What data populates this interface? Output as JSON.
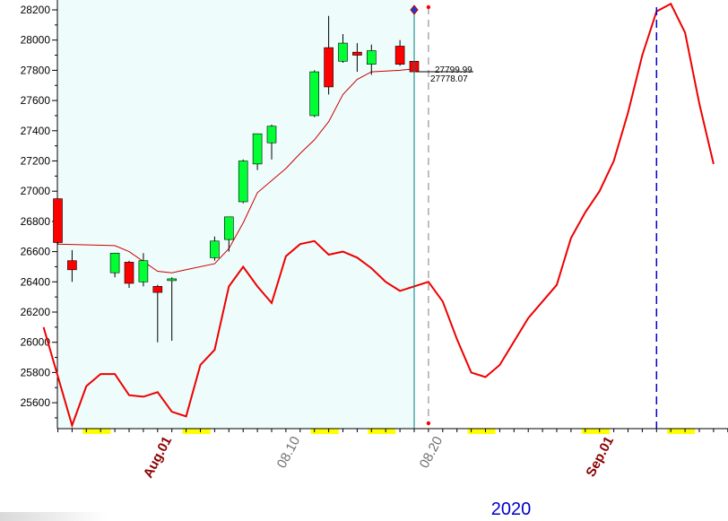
{
  "colors": {
    "history_bg": "#eefcfc",
    "bull": "#00ff33",
    "bear": "#ff0000",
    "avg_line": "#cc0000",
    "forecast_line": "#ee0000",
    "highlight": "#ffff00",
    "current_line": "#007b7b",
    "forecast_marker": "#ff0000",
    "target_line": "#0000cc",
    "month_label": "#8b0000",
    "day_label": "#707070",
    "year_label": "#0000cc"
  },
  "chart_data": {
    "type": "candlestick",
    "ylim": [
      25450,
      28250
    ],
    "y_ticks": [
      "28200",
      "28000",
      "27800",
      "27600",
      "27400",
      "27200",
      "27000",
      "26800",
      "26600",
      "26400",
      "26200",
      "26000",
      "25800",
      "25600"
    ],
    "x_labels": [
      {
        "text": "Aug.01",
        "day": 8,
        "kind": "month"
      },
      {
        "text": "08.10",
        "day": 17,
        "kind": "day"
      },
      {
        "text": "08.20",
        "day": 27,
        "kind": "day"
      },
      {
        "text": "Sep.01",
        "day": 39,
        "kind": "month"
      }
    ],
    "year": "2020",
    "current_day": 25,
    "forecast_day": 26,
    "target_day": 42,
    "highlight_days": [
      2,
      9,
      18,
      22,
      29,
      37,
      43
    ],
    "candles": [
      {
        "day": 0,
        "open": 26950,
        "high": 26950,
        "low": 26650,
        "close": 26660
      },
      {
        "day": 1,
        "open": 26540,
        "high": 26610,
        "low": 26400,
        "close": 26480
      },
      {
        "day": 4,
        "open": 26460,
        "high": 26580,
        "low": 26430,
        "close": 26590
      },
      {
        "day": 5,
        "open": 26530,
        "high": 26540,
        "low": 26360,
        "close": 26390
      },
      {
        "day": 6,
        "open": 26400,
        "high": 26590,
        "low": 26370,
        "close": 26540
      },
      {
        "day": 7,
        "open": 26370,
        "high": 26380,
        "low": 26000,
        "close": 26330
      },
      {
        "day": 8,
        "open": 26410,
        "high": 26430,
        "low": 26010,
        "close": 26420
      },
      {
        "day": 11,
        "open": 26560,
        "high": 26700,
        "low": 26540,
        "close": 26670
      },
      {
        "day": 12,
        "open": 26680,
        "high": 26830,
        "low": 26600,
        "close": 26830
      },
      {
        "day": 13,
        "open": 26930,
        "high": 27210,
        "low": 26920,
        "close": 27200
      },
      {
        "day": 14,
        "open": 27180,
        "high": 27380,
        "low": 27140,
        "close": 27380
      },
      {
        "day": 15,
        "open": 27320,
        "high": 27440,
        "low": 27210,
        "close": 27430
      },
      {
        "day": 18,
        "open": 27500,
        "high": 27800,
        "low": 27490,
        "close": 27790
      },
      {
        "day": 19,
        "open": 27950,
        "high": 28160,
        "low": 27640,
        "close": 27690
      },
      {
        "day": 20,
        "open": 27860,
        "high": 28040,
        "low": 27850,
        "close": 27980
      },
      {
        "day": 21,
        "open": 27920,
        "high": 27980,
        "low": 27790,
        "close": 27900
      },
      {
        "day": 22,
        "open": 27840,
        "high": 27970,
        "low": 27770,
        "close": 27930
      },
      {
        "day": 24,
        "open": 27960,
        "high": 28000,
        "low": 27830,
        "close": 27840
      },
      {
        "day": 25,
        "open": 27860,
        "high": 27870,
        "low": 27770,
        "close": 27790
      }
    ],
    "price_labels": [
      "27799.99",
      "27778.07"
    ],
    "avg_line": [
      {
        "day": 0,
        "value": 26650
      },
      {
        "day": 4,
        "value": 26640
      },
      {
        "day": 5,
        "value": 26600
      },
      {
        "day": 7,
        "value": 26470
      },
      {
        "day": 8,
        "value": 26460
      },
      {
        "day": 9,
        "value": 26480
      },
      {
        "day": 11,
        "value": 26520
      },
      {
        "day": 12,
        "value": 26620
      },
      {
        "day": 13,
        "value": 26790
      },
      {
        "day": 14,
        "value": 26990
      },
      {
        "day": 16,
        "value": 27150
      },
      {
        "day": 17,
        "value": 27250
      },
      {
        "day": 18,
        "value": 27340
      },
      {
        "day": 19,
        "value": 27460
      },
      {
        "day": 20,
        "value": 27640
      },
      {
        "day": 21,
        "value": 27740
      },
      {
        "day": 22,
        "value": 27790
      },
      {
        "day": 24,
        "value": 27800
      },
      {
        "day": 25,
        "value": 27810
      }
    ],
    "forecast_line": [
      {
        "day": -1,
        "value": 26100
      },
      {
        "day": 1,
        "value": 25450
      },
      {
        "day": 2,
        "value": 25710
      },
      {
        "day": 3,
        "value": 25790
      },
      {
        "day": 4,
        "value": 25790
      },
      {
        "day": 5,
        "value": 25650
      },
      {
        "day": 6,
        "value": 25640
      },
      {
        "day": 7,
        "value": 25670
      },
      {
        "day": 8,
        "value": 25540
      },
      {
        "day": 9,
        "value": 25510
      },
      {
        "day": 10,
        "value": 25850
      },
      {
        "day": 11,
        "value": 25950
      },
      {
        "day": 12,
        "value": 26370
      },
      {
        "day": 13,
        "value": 26500
      },
      {
        "day": 14,
        "value": 26370
      },
      {
        "day": 15,
        "value": 26260
      },
      {
        "day": 16,
        "value": 26570
      },
      {
        "day": 17,
        "value": 26650
      },
      {
        "day": 18,
        "value": 26670
      },
      {
        "day": 19,
        "value": 26580
      },
      {
        "day": 20,
        "value": 26600
      },
      {
        "day": 21,
        "value": 26560
      },
      {
        "day": 22,
        "value": 26490
      },
      {
        "day": 23,
        "value": 26400
      },
      {
        "day": 24,
        "value": 26340
      },
      {
        "day": 26,
        "value": 26400
      },
      {
        "day": 27,
        "value": 26270
      },
      {
        "day": 28,
        "value": 26020
      },
      {
        "day": 29,
        "value": 25800
      },
      {
        "day": 30,
        "value": 25770
      },
      {
        "day": 31,
        "value": 25850
      },
      {
        "day": 33,
        "value": 26160
      },
      {
        "day": 35,
        "value": 26380
      },
      {
        "day": 36,
        "value": 26690
      },
      {
        "day": 37,
        "value": 26860
      },
      {
        "day": 38,
        "value": 27000
      },
      {
        "day": 39,
        "value": 27200
      },
      {
        "day": 40,
        "value": 27520
      },
      {
        "day": 41,
        "value": 27900
      },
      {
        "day": 42,
        "value": 28190
      },
      {
        "day": 43,
        "value": 28240
      },
      {
        "day": 44,
        "value": 28050
      },
      {
        "day": 45,
        "value": 27580
      },
      {
        "day": 46,
        "value": 27180
      }
    ]
  }
}
